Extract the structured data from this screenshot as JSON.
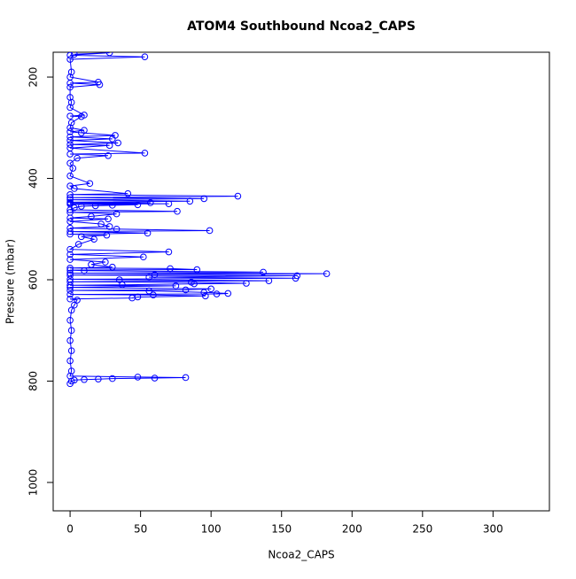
{
  "chart_data": {
    "type": "line",
    "markers": true,
    "title": "ATOM4 Southbound Ncoa2_CAPS",
    "x_label": "Ncoa2_CAPS",
    "y_label": "Pressure (mbar)",
    "color": "#0000ff",
    "xlim": [
      -12,
      340
    ],
    "xticks": [
      0,
      50,
      100,
      150,
      200,
      250,
      300
    ],
    "ylim": [
      1056,
      151
    ],
    "yticks": [
      200,
      400,
      600,
      800,
      1000
    ],
    "x": [
      3,
      28,
      0,
      53,
      0,
      1,
      0,
      20,
      0,
      21,
      0,
      0,
      1,
      0,
      10,
      0,
      8,
      1,
      0,
      10,
      0,
      8,
      32,
      0,
      30,
      0,
      34,
      0,
      28,
      0,
      53,
      0,
      27,
      5,
      0,
      2,
      0,
      14,
      0,
      3,
      41,
      0,
      119,
      0,
      95,
      0,
      85,
      0,
      57,
      0,
      70,
      0,
      48,
      30,
      18,
      8,
      3,
      0,
      76,
      0,
      33,
      15,
      0,
      27,
      0,
      22,
      28,
      0,
      33,
      99,
      0,
      55,
      0,
      26,
      8,
      17,
      6,
      0,
      70,
      0,
      52,
      0,
      25,
      15,
      30,
      0,
      71,
      90,
      0,
      10,
      137,
      0,
      182,
      60,
      0,
      161,
      56,
      160,
      0,
      35,
      141,
      0,
      86,
      125,
      88,
      37,
      0,
      75,
      0,
      100,
      82,
      0,
      56,
      95,
      112,
      104,
      0,
      59,
      96,
      48,
      44,
      0,
      5,
      3,
      1,
      0,
      1,
      0,
      1,
      0,
      1,
      0,
      48,
      82,
      60,
      30,
      20,
      10,
      3,
      1,
      0
    ],
    "values": [
      155,
      152,
      157,
      160,
      165,
      190,
      200,
      210,
      212,
      215,
      220,
      240,
      250,
      260,
      275,
      277,
      278,
      290,
      300,
      305,
      308,
      310,
      315,
      318,
      322,
      325,
      330,
      333,
      335,
      340,
      350,
      352,
      355,
      360,
      370,
      380,
      395,
      410,
      415,
      420,
      430,
      432,
      435,
      438,
      440,
      442,
      445,
      447,
      448,
      449,
      450,
      451,
      452,
      453,
      454,
      455,
      458,
      462,
      465,
      467,
      470,
      475,
      478,
      480,
      485,
      490,
      495,
      498,
      500,
      503,
      505,
      508,
      510,
      512,
      515,
      520,
      530,
      540,
      545,
      550,
      555,
      560,
      565,
      570,
      575,
      577,
      578,
      580,
      581,
      582,
      585,
      587,
      588,
      590,
      591,
      592,
      595,
      597,
      599,
      600,
      602,
      604,
      605,
      607,
      608,
      610,
      611,
      612,
      615,
      618,
      620,
      621,
      622,
      625,
      627,
      628,
      629,
      630,
      632,
      634,
      636,
      638,
      640,
      650,
      660,
      680,
      700,
      720,
      740,
      760,
      780,
      790,
      792,
      793,
      794,
      795,
      796,
      797,
      798,
      800,
      805
    ]
  }
}
